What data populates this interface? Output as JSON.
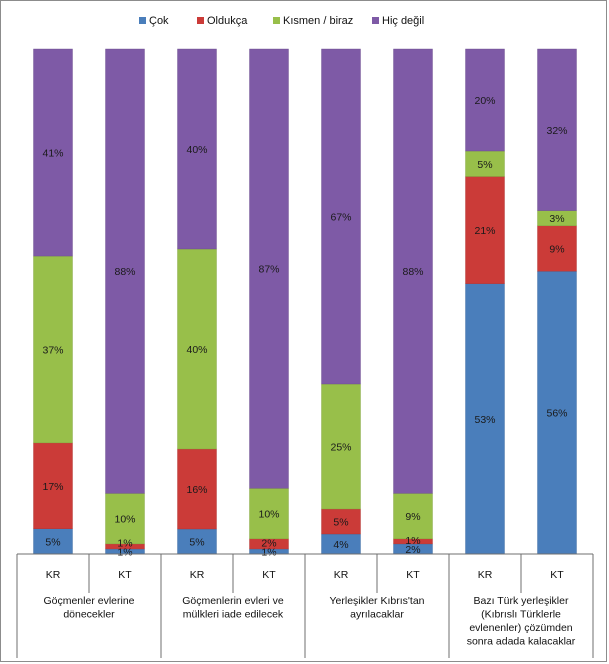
{
  "chart_data": {
    "type": "bar",
    "stacked": true,
    "percent": true,
    "series": [
      {
        "name": "Çok",
        "color": "#4a7ebb"
      },
      {
        "name": "Oldukça",
        "color": "#cb3b38"
      },
      {
        "name": "Kısmen / biraz",
        "color": "#98bf4a"
      },
      {
        "name": "Hiç değil",
        "color": "#7e5aa6"
      }
    ],
    "bars": [
      {
        "label": "KR",
        "values": [
          5,
          17,
          37,
          41
        ],
        "labels": [
          "5%",
          "17%",
          "37%",
          "41%"
        ]
      },
      {
        "label": "KT",
        "values": [
          1,
          1,
          10,
          88
        ],
        "labels": [
          "1%",
          "1%",
          "10%",
          "88%"
        ]
      },
      {
        "label": "KR",
        "values": [
          5,
          16,
          40,
          40
        ],
        "labels": [
          "5%",
          "16%",
          "40%",
          "40%"
        ]
      },
      {
        "label": "KT",
        "values": [
          1,
          2,
          10,
          87
        ],
        "labels": [
          "1%",
          "2%",
          "10%",
          "87%"
        ]
      },
      {
        "label": "KR",
        "values": [
          4,
          5,
          25,
          67
        ],
        "labels": [
          "4%",
          "5%",
          "25%",
          "67%"
        ]
      },
      {
        "label": "KT",
        "values": [
          2,
          1,
          9,
          88
        ],
        "labels": [
          "2%",
          "1%",
          "9%",
          "88%"
        ]
      },
      {
        "label": "KR",
        "values": [
          53,
          21,
          5,
          20
        ],
        "labels": [
          "53%",
          "21%",
          "5%",
          "20%"
        ]
      },
      {
        "label": "KT",
        "values": [
          56,
          9,
          3,
          32
        ],
        "labels": [
          "56%",
          "9%",
          "3%",
          "32%"
        ]
      }
    ],
    "groups": [
      {
        "lines": [
          "Göçmenler evlerine",
          "dönecekler"
        ]
      },
      {
        "lines": [
          "Göçmenlerin evleri ve",
          "mülkleri iade edilecek"
        ]
      },
      {
        "lines": [
          "Yerleşikler Kıbrıs'tan",
          "ayrılacaklar"
        ]
      },
      {
        "lines": [
          "Bazı Türk yerleşikler",
          "(Kıbrıslı Türklerle",
          "evlenenler) çözümden",
          "sonra adada kalacaklar"
        ]
      }
    ],
    "ylim": [
      0,
      100
    ],
    "legend_position": "top"
  }
}
